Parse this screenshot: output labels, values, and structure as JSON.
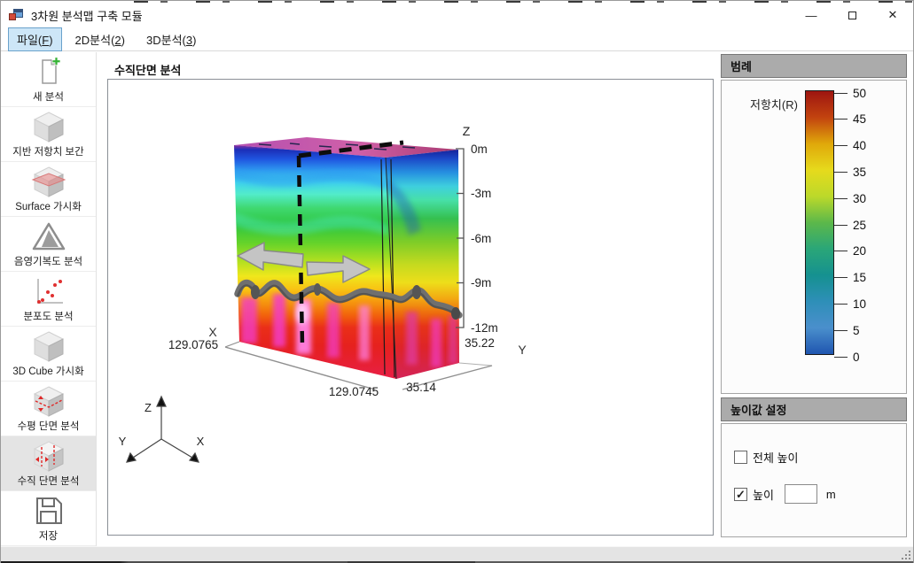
{
  "window": {
    "title": "3차원 분석맵 구축 모듈",
    "minimize": "—",
    "close": "✕"
  },
  "menu": {
    "items": [
      {
        "pre": "파일(",
        "key": "F",
        "post": ")"
      },
      {
        "pre": "2D분석(",
        "key": "2",
        "post": ")"
      },
      {
        "pre": "3D분석(",
        "key": "3",
        "post": ")"
      }
    ]
  },
  "sidebar": {
    "items": [
      {
        "label": "새 분석",
        "icon": "new-analysis-icon",
        "selected": false
      },
      {
        "label": "지반 저항치 보간",
        "icon": "cube-icon",
        "selected": false
      },
      {
        "label": "Surface 가시화",
        "icon": "surface-cube-icon",
        "selected": false
      },
      {
        "label": "음영기복도 분석",
        "icon": "hillshade-icon",
        "selected": false
      },
      {
        "label": "분포도 분석",
        "icon": "scatter-icon",
        "selected": false
      },
      {
        "label": "3D Cube 가시화",
        "icon": "cube-icon",
        "selected": false
      },
      {
        "label": "수평 단면 분석",
        "icon": "horizontal-section-icon",
        "selected": false
      },
      {
        "label": "수직 단면 분석",
        "icon": "vertical-section-icon",
        "selected": true
      },
      {
        "label": "저장",
        "icon": "save-icon",
        "selected": false
      }
    ]
  },
  "main": {
    "title": "수직단면 분석",
    "axes": {
      "z_label": "Z",
      "z_ticks": [
        "0m",
        "-3m",
        "-6m",
        "-9m",
        "-12m"
      ],
      "x_label": "X",
      "x_start": "129.0765",
      "x_end": "129.0745",
      "y_label": "Y",
      "y_near": "35.14",
      "y_far": "35.22"
    },
    "triad": {
      "x": "X",
      "y": "Y",
      "z": "Z"
    }
  },
  "legend": {
    "header": "범례",
    "series_label": "저항치(R)",
    "ticks": [
      50,
      45,
      40,
      35,
      30,
      25,
      20,
      15,
      10,
      5,
      0
    ],
    "colors_top_to_bottom": [
      "#9e1510",
      "#c2430f",
      "#e0a80a",
      "#e6da1c",
      "#bcd92a",
      "#5cb84a",
      "#2aa678",
      "#159190",
      "#2e8fb8",
      "#4a8fcc",
      "#1f55b0"
    ]
  },
  "height_panel": {
    "header": "높이값 설정",
    "full_height": {
      "label": "전체 높이",
      "checked": false
    },
    "height": {
      "label": "높이",
      "checked": true
    },
    "input_value": "",
    "unit": "m"
  }
}
